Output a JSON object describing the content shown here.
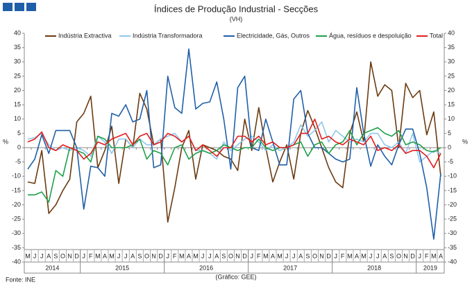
{
  "chart_data": {
    "type": "line",
    "title": "Índices de Produção Industrial - Secções",
    "subtitle": "(VH)",
    "y_label": "%",
    "y2_label": "%",
    "source": "Fonte: INE",
    "credit": "(Gráfico: GEE)",
    "categories": [
      "M",
      "J",
      "J",
      "A",
      "S",
      "O",
      "N",
      "D",
      "J",
      "F",
      "M",
      "A",
      "M",
      "J",
      "J",
      "A",
      "S",
      "O",
      "N",
      "D",
      "J",
      "F",
      "M",
      "A",
      "M",
      "J",
      "J",
      "A",
      "S",
      "O",
      "N",
      "D",
      "J",
      "F",
      "M",
      "A",
      "M",
      "J",
      "J",
      "A",
      "S",
      "O",
      "N",
      "D",
      "J",
      "F",
      "M",
      "A",
      "M",
      "J",
      "J",
      "A",
      "S",
      "O",
      "N",
      "D",
      "J",
      "F",
      "M",
      "A"
    ],
    "category_groups": [
      {
        "label": "2014",
        "size": 8
      },
      {
        "label": "2015",
        "size": 12
      },
      {
        "label": "2016",
        "size": 12
      },
      {
        "label": "2017",
        "size": 12
      },
      {
        "label": "2018",
        "size": 12
      },
      {
        "label": "2019",
        "size": 4
      }
    ],
    "ylim": [
      -40,
      40
    ],
    "yticks": [
      -40,
      -35,
      -30,
      -25,
      -20,
      -15,
      -10,
      -5,
      0,
      5,
      10,
      15,
      20,
      25,
      30,
      35,
      40
    ],
    "y2lim": [
      -40,
      40
    ],
    "y2ticks": [
      -40,
      -35,
      -30,
      -25,
      -20,
      -15,
      -10,
      -5,
      0,
      5,
      10,
      15,
      20,
      25,
      30,
      35,
      40
    ],
    "grid": false,
    "legend": "top",
    "series": [
      {
        "name": "Indústria Extractiva",
        "color": "#6b3a10",
        "values": [
          -12,
          -12.5,
          -1,
          -23,
          -20,
          -15,
          -11,
          9,
          12,
          18,
          -7,
          -1,
          7.5,
          -12.5,
          3,
          0,
          19,
          13.5,
          1,
          3,
          -26,
          -14,
          0,
          6,
          -11,
          1,
          0,
          -1,
          -3,
          -4,
          -8,
          10,
          -1,
          14,
          0,
          -12,
          -5,
          1,
          -11,
          5,
          13,
          7,
          0,
          -7,
          -12,
          -14,
          5,
          12.5,
          2,
          30,
          18,
          22,
          20,
          0,
          22.5,
          17.5,
          20,
          4.5,
          12.5,
          -10
        ]
      },
      {
        "name": "Indústria Transformadora",
        "color": "#8ec8ea",
        "values": [
          3,
          3.5,
          5,
          1,
          -1,
          0,
          -1,
          0,
          -1,
          -3,
          4,
          2,
          -2,
          3,
          3,
          0,
          3,
          1,
          1,
          3,
          4,
          5,
          2,
          4,
          -1,
          -1,
          -2,
          -4,
          2,
          -1,
          1,
          3,
          4,
          2,
          -1,
          1,
          -1,
          0,
          2,
          8,
          4,
          6,
          9,
          2,
          6,
          4,
          2,
          3,
          2,
          5,
          5,
          1,
          0,
          2,
          -2,
          5,
          -5,
          -3,
          -1,
          -2
        ]
      },
      {
        "name": "Electricidade, Gás, Outros",
        "color": "#1f5fa8",
        "values": [
          -7.5,
          -4,
          4.5,
          -2,
          6,
          6,
          6,
          0,
          -21.5,
          -6.5,
          -7,
          -10,
          12,
          11,
          15,
          9,
          10,
          20,
          -7,
          -6,
          25,
          14,
          12,
          34.5,
          13.5,
          15.5,
          16,
          23,
          10,
          -7.5,
          21,
          25,
          0,
          -1,
          10,
          2,
          -6,
          -6,
          17,
          20,
          5,
          0,
          0,
          -2,
          -4,
          -5,
          -4,
          21,
          5,
          -6.5,
          1,
          -3,
          -6,
          1,
          6.5,
          6.5,
          -2,
          -14,
          -32,
          -9
        ]
      },
      {
        "name": "Água, resíduos e despoluição",
        "color": "#1fa04a",
        "values": [
          -16.5,
          -16.5,
          -15.5,
          -19,
          -8,
          -10,
          0,
          -1,
          -2,
          -5,
          4,
          3,
          0,
          0,
          0,
          1,
          3,
          -4,
          -1,
          -2,
          -6,
          0,
          1,
          -4,
          -2,
          -1,
          -2,
          -1,
          1,
          0,
          -1,
          0,
          0,
          3,
          0,
          -1,
          0,
          0,
          1,
          2,
          -3,
          1,
          2,
          -2,
          1,
          2,
          6,
          1,
          5,
          6,
          7,
          5,
          4,
          6,
          1,
          2,
          1,
          -1,
          -1.5,
          0
        ]
      },
      {
        "name": "Total",
        "color": "#e41c1c",
        "values": [
          2,
          3,
          5.5,
          0,
          -1,
          1,
          0,
          -1,
          -4,
          -2,
          2,
          1,
          3,
          4,
          5,
          1,
          4,
          5,
          1,
          2,
          5,
          4,
          2,
          4,
          -1,
          1,
          -1,
          -3,
          0,
          0,
          4,
          4,
          2,
          4,
          1,
          2,
          0,
          0,
          1,
          5,
          5,
          10,
          3,
          4,
          2,
          1,
          3,
          2,
          1,
          4,
          -1,
          0,
          -1,
          1,
          -2,
          -1,
          -1,
          -3,
          -7,
          -2
        ]
      }
    ]
  }
}
